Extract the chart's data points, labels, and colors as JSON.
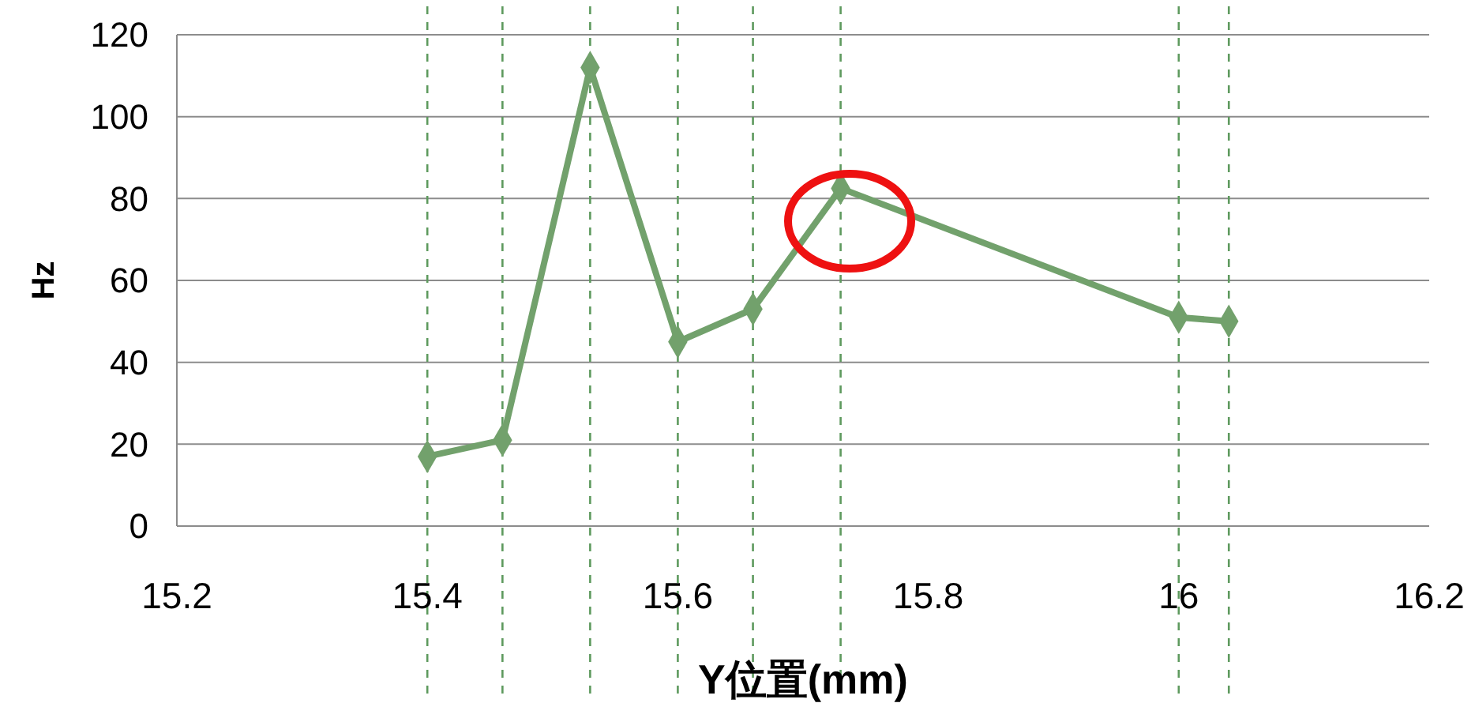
{
  "chart_data": {
    "type": "line",
    "xlabel": "Y位置(mm)",
    "ylabel": "Hz",
    "x": [
      15.4,
      15.46,
      15.53,
      15.6,
      15.66,
      15.73,
      16.0,
      16.04
    ],
    "series": [
      {
        "color": "#72a16c",
        "values": [
          17,
          21,
          112,
          45,
          53,
          82.5,
          51,
          50
        ]
      }
    ],
    "xlim": [
      15.2,
      16.2
    ],
    "xticks": [
      15.2,
      15.4,
      15.6,
      15.8,
      16,
      16.2
    ],
    "ylim": [
      0,
      120
    ],
    "yticks": [
      0,
      20,
      40,
      60,
      80,
      100,
      120
    ],
    "grid": "y",
    "marker": "diamond",
    "line_style": "solid",
    "ref_lines": [
      {
        "axis": "x",
        "value": 15.4,
        "color": "#5e9a5e",
        "line_style": "dashed"
      },
      {
        "axis": "x",
        "value": 15.46,
        "color": "#5e9a5e",
        "line_style": "dashed"
      },
      {
        "axis": "x",
        "value": 15.53,
        "color": "#5e9a5e",
        "line_style": "dashed"
      },
      {
        "axis": "x",
        "value": 15.6,
        "color": "#5e9a5e",
        "line_style": "dashed"
      },
      {
        "axis": "x",
        "value": 15.66,
        "color": "#5e9a5e",
        "line_style": "dashed"
      },
      {
        "axis": "x",
        "value": 15.73,
        "color": "#5e9a5e",
        "line_style": "dashed"
      },
      {
        "axis": "x",
        "value": 16.0,
        "color": "#5e9a5e",
        "line_style": "dashed"
      },
      {
        "axis": "x",
        "value": 16.04,
        "color": "#5e9a5e",
        "line_style": "dashed"
      }
    ]
  }
}
